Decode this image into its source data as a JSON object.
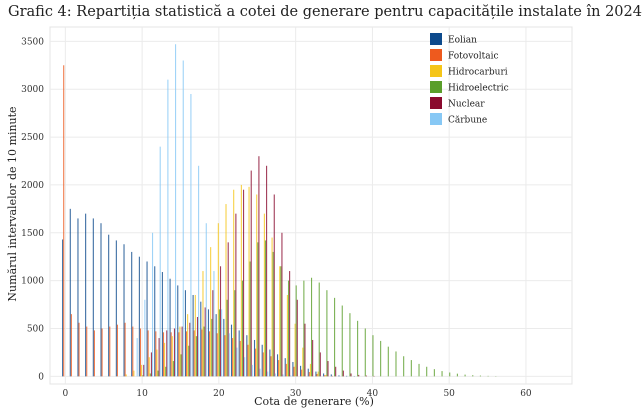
{
  "chart_data": {
    "type": "bar",
    "title": "Grafic 4: Repartiția statistică a cotei de generare pentru capacitățile instalate în 2024",
    "xlabel": "Cota de generare (%)",
    "ylabel": "Numărul intervalelor de 10 minute",
    "xlim": [
      -2,
      66
    ],
    "ylim": [
      -80,
      3650
    ],
    "x_ticks": [
      0,
      10,
      20,
      30,
      40,
      50,
      60
    ],
    "y_ticks": [
      0,
      500,
      1000,
      1500,
      2000,
      2500,
      3000,
      3500
    ],
    "grid": true,
    "legend_position": "top-right",
    "series": [
      {
        "name": "Eolian",
        "color": "#0d4a8c",
        "x_start": 0,
        "step": 1,
        "values": [
          1430,
          1750,
          1650,
          1700,
          1650,
          1600,
          1480,
          1420,
          1380,
          1300,
          1250,
          1200,
          1150,
          1090,
          1020,
          950,
          900,
          850,
          780,
          700,
          650,
          600,
          540,
          480,
          430,
          380,
          330,
          280,
          230,
          190,
          150,
          110,
          80,
          50,
          30,
          20,
          10,
          5,
          3
        ]
      },
      {
        "name": "Fotovoltaic",
        "color": "#ee5a1e",
        "x_start": 0,
        "step": 1,
        "values": [
          3250,
          650,
          560,
          520,
          480,
          500,
          520,
          540,
          560,
          520,
          500,
          480,
          470,
          460,
          460,
          460,
          470,
          480,
          490,
          470,
          450,
          430,
          400,
          370,
          330,
          290,
          250,
          210,
          170,
          130,
          100,
          70,
          45,
          25,
          12,
          5
        ]
      },
      {
        "name": "Hidrocarburi",
        "color": "#f5c518",
        "x_start": 8,
        "step": 1,
        "values": [
          20,
          60,
          120,
          200,
          280,
          350,
          420,
          520,
          650,
          850,
          1100,
          1350,
          1600,
          1800,
          1950,
          2000,
          1980,
          1900,
          1700,
          1450,
          1150,
          850,
          550,
          300,
          130,
          50,
          15
        ]
      },
      {
        "name": "Hidroelectric",
        "color": "#5a9e2a",
        "x_start": 10,
        "step": 1,
        "values": [
          10,
          30,
          60,
          100,
          160,
          230,
          320,
          420,
          520,
          600,
          700,
          800,
          900,
          1000,
          1200,
          1400,
          1420,
          1300,
          1150,
          1000,
          950,
          1000,
          1030,
          980,
          900,
          820,
          740,
          660,
          580,
          500,
          430,
          370,
          310,
          260,
          210,
          170,
          130,
          100,
          75,
          55,
          40,
          28,
          18,
          12,
          8,
          5,
          3
        ]
      },
      {
        "name": "Nuclear",
        "color": "#8a0a2e",
        "x_start": 10,
        "step": 1,
        "values": [
          120,
          250,
          400,
          480,
          500,
          520,
          560,
          620,
          720,
          900,
          1150,
          1400,
          1700,
          1950,
          2150,
          2300,
          2200,
          1900,
          1500,
          1100,
          800,
          550,
          380,
          250,
          160,
          100,
          60,
          30,
          15,
          8,
          4
        ]
      },
      {
        "name": "Cărbune",
        "color": "#87c8f5",
        "x_start": 9,
        "step": 1,
        "values": [
          400,
          800,
          1500,
          2400,
          3100,
          3470,
          3300,
          2950,
          2200,
          1600,
          1100,
          700,
          450,
          300,
          200,
          120,
          80,
          50,
          30,
          20,
          10
        ]
      }
    ]
  }
}
